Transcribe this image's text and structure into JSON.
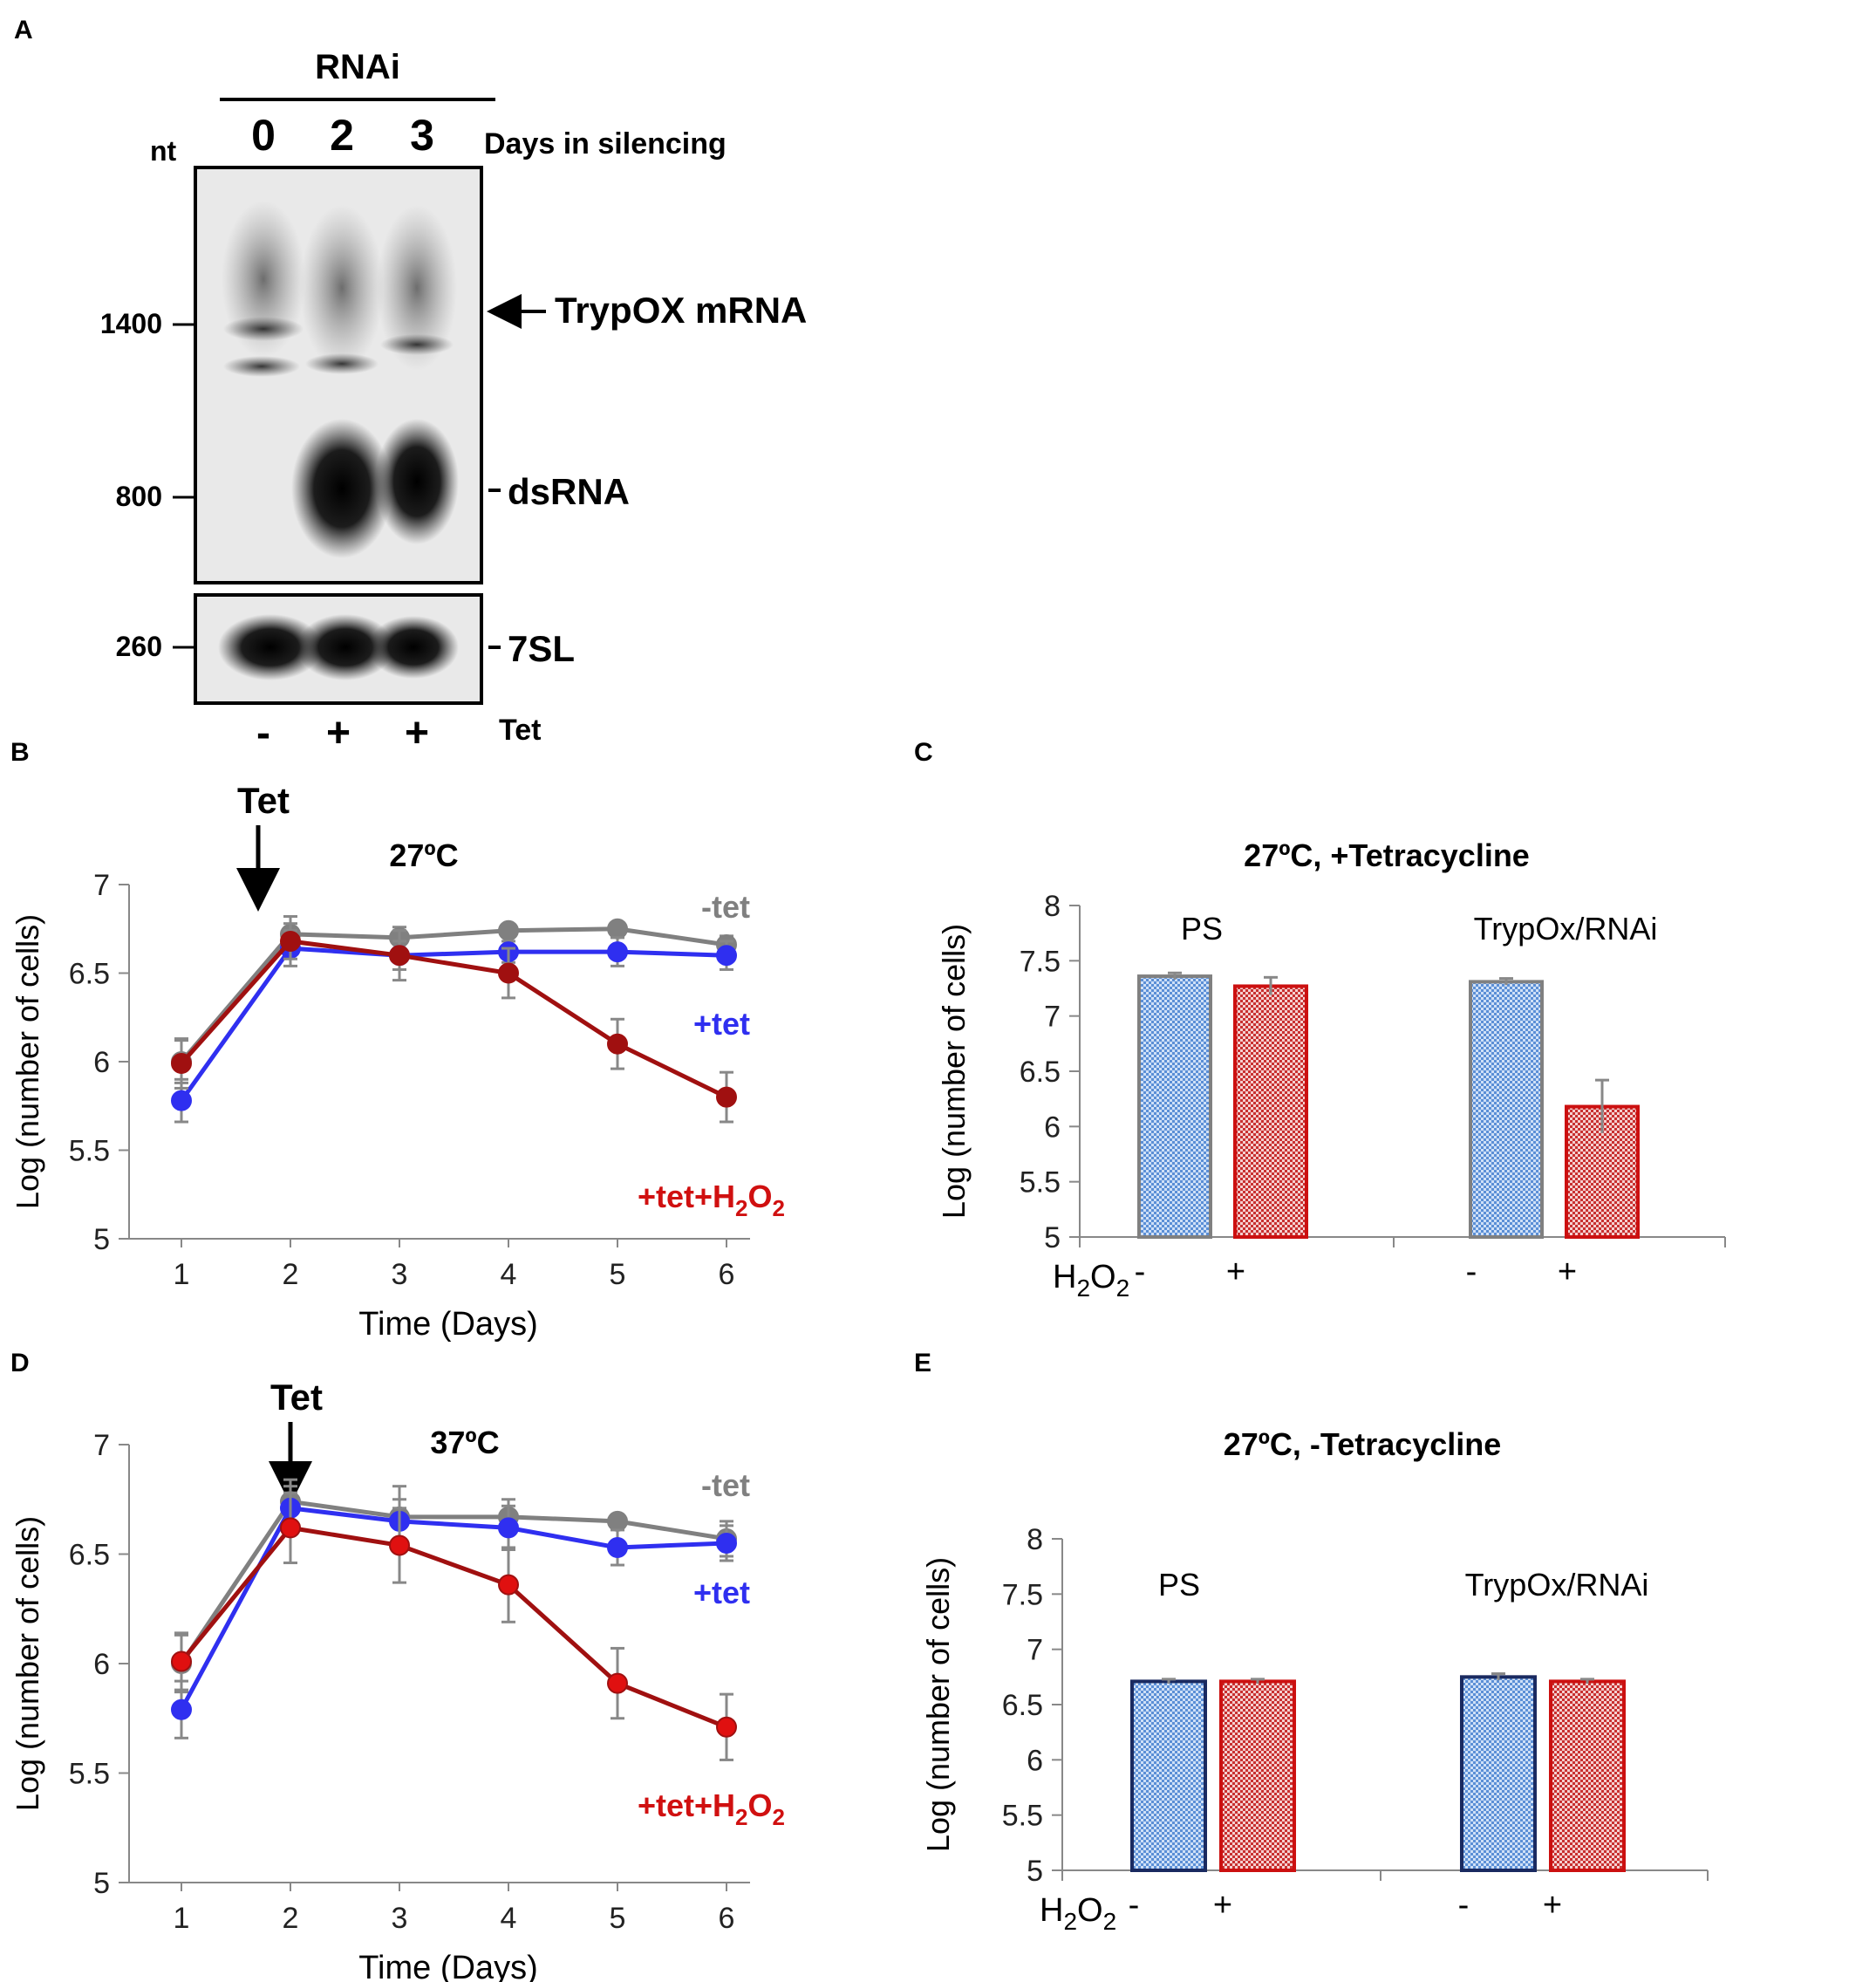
{
  "panels": {
    "a": "A",
    "b": "B",
    "c": "C",
    "d": "D",
    "e": "E"
  },
  "blot": {
    "header": "RNAi",
    "days_label": "Days in silencing",
    "lanes": [
      "0",
      "2",
      "3"
    ],
    "nt_label": "nt",
    "markers": [
      "1400",
      "800",
      "260"
    ],
    "target_label": "TrypOX mRNA",
    "dsrna_label": "dsRNA",
    "control_label": "7SL",
    "tet_label": "Tet",
    "tet_signs": [
      "-",
      "+",
      "+"
    ]
  },
  "colors": {
    "gray": "#808080",
    "blue": "#2f2ff0",
    "darkred": "#a01010",
    "red": "#e01010",
    "bar_blue": "#5b8fd6",
    "bar_red": "#c83030",
    "border_navy": "#1a2a60"
  },
  "chart_data": [
    {
      "panel": "B",
      "type": "line",
      "title": "27ºC",
      "annotation": "Tet",
      "xlabel": "Time (Days)",
      "ylabel": "Log (number of cells)",
      "ylim": [
        5,
        7
      ],
      "yticks": [
        "5",
        "5.5",
        "6",
        "6.5",
        "7"
      ],
      "x": [
        1,
        2,
        3,
        4,
        5,
        6
      ],
      "xticks": [
        "1",
        "2",
        "3",
        "4",
        "5",
        "6"
      ],
      "series": [
        {
          "name": "-tet",
          "values": [
            6.0,
            6.72,
            6.7,
            6.74,
            6.75,
            6.66
          ],
          "errors": [
            0.12,
            0.1,
            0.06,
            0.03,
            0.03,
            0.05
          ],
          "color": "#808080"
        },
        {
          "name": "+tet",
          "values": [
            5.78,
            6.64,
            6.6,
            6.62,
            6.62,
            6.6
          ],
          "errors": [
            0.12,
            0.1,
            0.08,
            0.06,
            0.08,
            0.08
          ],
          "color": "#2f2ff0"
        },
        {
          "name": "+tet+H2O2",
          "values": [
            5.99,
            6.68,
            6.6,
            6.5,
            6.1,
            5.8
          ],
          "errors": [
            0.14,
            0.1,
            0.14,
            0.14,
            0.14,
            0.14
          ],
          "color": "#a01010"
        }
      ],
      "legend": {
        "gray": "-tet",
        "blue": "+tet",
        "red_main": "+tet+H",
        "red_sub1": "2",
        "red_mid": "O",
        "red_sub2": "2"
      }
    },
    {
      "panel": "C",
      "type": "bar",
      "title": "27ºC, +Tetracycline",
      "ylabel": "Log (number of cells)",
      "ylim": [
        5,
        8
      ],
      "yticks": [
        "5",
        "5.5",
        "6",
        "6.5",
        "7",
        "7.5",
        "8"
      ],
      "groups": [
        "PS",
        "TrypOx/RNAi"
      ],
      "h2o2_label": {
        "main": "H",
        "sub1": "2",
        "mid": "O",
        "sub2": "2"
      },
      "h2o2_signs": [
        "-",
        "+",
        "-",
        "+"
      ],
      "series": [
        {
          "name": "- H2O2",
          "values": [
            7.36,
            7.31
          ],
          "errors": [
            0.03,
            0.03
          ]
        },
        {
          "name": "+ H2O2",
          "values": [
            7.27,
            6.18
          ],
          "errors": [
            0.08,
            0.24
          ]
        }
      ]
    },
    {
      "panel": "D",
      "type": "line",
      "title": "37ºC",
      "annotation": "Tet",
      "xlabel": "Time (Days)",
      "ylabel": "Log (number of cells)",
      "ylim": [
        5,
        7
      ],
      "yticks": [
        "5",
        "5.5",
        "6",
        "6.5",
        "7"
      ],
      "x": [
        1,
        2,
        3,
        4,
        5,
        6
      ],
      "xticks": [
        "1",
        "2",
        "3",
        "4",
        "5",
        "6"
      ],
      "series": [
        {
          "name": "-tet",
          "values": [
            6.0,
            6.74,
            6.67,
            6.67,
            6.65,
            6.57
          ],
          "errors": [
            0.13,
            0.1,
            0.14,
            0.08,
            0.03,
            0.08
          ],
          "color": "#808080"
        },
        {
          "name": "+tet",
          "values": [
            5.79,
            6.71,
            6.65,
            6.62,
            6.53,
            6.55
          ],
          "errors": [
            0.13,
            0.1,
            0.1,
            0.1,
            0.08,
            0.08
          ],
          "color": "#2f2ff0"
        },
        {
          "name": "+tet+H2O2",
          "values": [
            6.01,
            6.62,
            6.54,
            6.36,
            5.91,
            5.71
          ],
          "errors": [
            0.13,
            0.16,
            0.17,
            0.17,
            0.16,
            0.15
          ],
          "color": "#e01010",
          "line_color": "#a01010"
        }
      ],
      "legend": {
        "gray": "-tet",
        "blue": "+tet",
        "red_main": "+tet+H",
        "red_sub1": "2",
        "red_mid": "O",
        "red_sub2": "2"
      }
    },
    {
      "panel": "E",
      "type": "bar",
      "title": "27ºC, -Tetracycline",
      "ylabel": "Log (number of cells)",
      "ylim": [
        5,
        8
      ],
      "yticks": [
        "5",
        "5.5",
        "6",
        "6.5",
        "7",
        "7.5",
        "8"
      ],
      "groups": [
        "PS",
        "TrypOx/RNAi"
      ],
      "h2o2_label": {
        "main": "H",
        "sub1": "2",
        "mid": "O",
        "sub2": "2"
      },
      "h2o2_signs": [
        "-",
        "+",
        "-",
        "+"
      ],
      "series": [
        {
          "name": "- H2O2",
          "values": [
            6.71,
            6.75
          ],
          "errors": [
            0.02,
            0.03
          ]
        },
        {
          "name": "+ H2O2",
          "values": [
            6.71,
            6.71
          ],
          "errors": [
            0.02,
            0.02
          ]
        }
      ]
    }
  ]
}
